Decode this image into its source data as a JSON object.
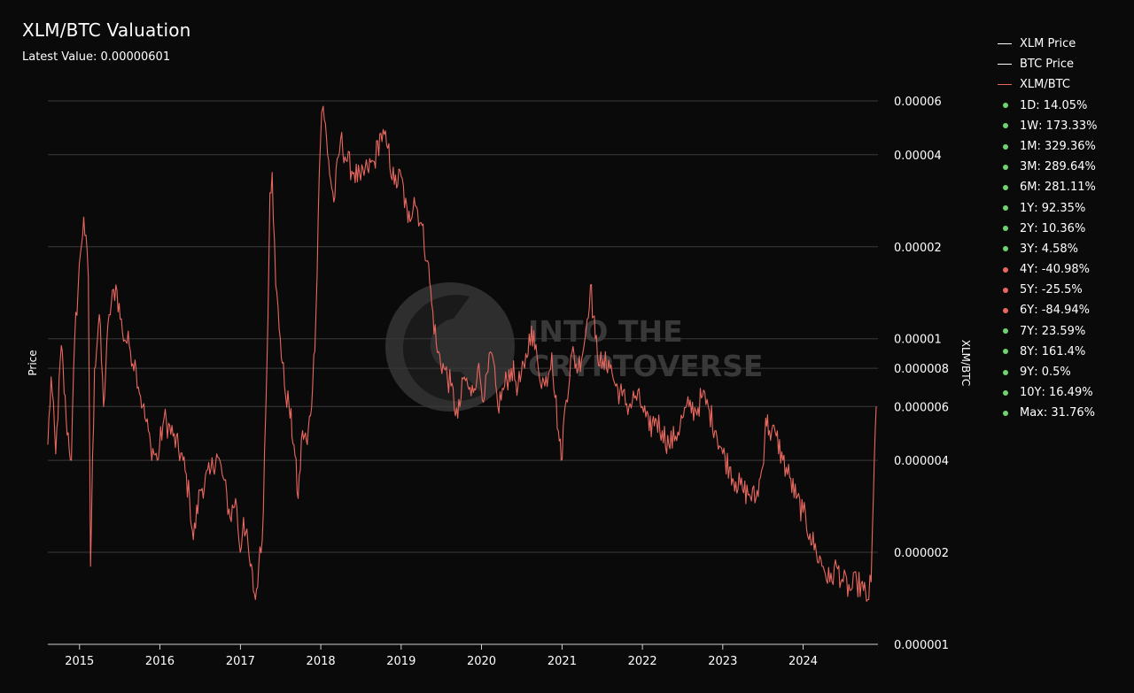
{
  "header": {
    "title": "XLM/BTC Valuation",
    "latest_label": "Latest Value:",
    "latest_value": "0.00000601"
  },
  "legend": {
    "series": [
      {
        "label": "XLM Price",
        "color": "#ffffff"
      },
      {
        "label": "BTC Price",
        "color": "#ffffff"
      },
      {
        "label": "XLM/BTC",
        "color": "#e8685f"
      }
    ],
    "performance": [
      {
        "period": "1D",
        "value": "14.05%",
        "positive": true
      },
      {
        "period": "1W",
        "value": "173.33%",
        "positive": true
      },
      {
        "period": "1M",
        "value": "329.36%",
        "positive": true
      },
      {
        "period": "3M",
        "value": "289.64%",
        "positive": true
      },
      {
        "period": "6M",
        "value": "281.11%",
        "positive": true
      },
      {
        "period": "1Y",
        "value": "92.35%",
        "positive": true
      },
      {
        "period": "2Y",
        "value": "10.36%",
        "positive": true
      },
      {
        "period": "3Y",
        "value": "4.58%",
        "positive": true
      },
      {
        "period": "4Y",
        "value": "-40.98%",
        "positive": false
      },
      {
        "period": "5Y",
        "value": "-25.5%",
        "positive": false
      },
      {
        "period": "6Y",
        "value": "-84.94%",
        "positive": false
      },
      {
        "period": "7Y",
        "value": "23.59%",
        "positive": true
      },
      {
        "period": "8Y",
        "value": "161.4%",
        "positive": true
      },
      {
        "period": "9Y",
        "value": "0.5%",
        "positive": true
      },
      {
        "period": "10Y",
        "value": "16.49%",
        "positive": true
      },
      {
        "period": "Max",
        "value": "31.76%",
        "positive": true
      }
    ],
    "positive_color": "#6fd36f",
    "negative_color": "#e8685f"
  },
  "watermark": {
    "line1": "INTO THE",
    "line2": "CRYPTOVERSE"
  },
  "chart_data": {
    "type": "line",
    "title": "XLM/BTC Valuation",
    "ylabel_left": "Price",
    "ylabel_right": "XLM/BTC",
    "y_scale": "log",
    "ylim": [
      1e-06,
      6e-05
    ],
    "xlim": [
      "2014-08-10",
      "2024-11-28"
    ],
    "x_ticks": [
      "2015",
      "2016",
      "2017",
      "2018",
      "2019",
      "2020",
      "2021",
      "2022",
      "2023",
      "2024"
    ],
    "y_ticks": [
      {
        "value": 1e-06,
        "label": "0.000001"
      },
      {
        "value": 2e-06,
        "label": "0.000002"
      },
      {
        "value": 4e-06,
        "label": "0.000004"
      },
      {
        "value": 6e-06,
        "label": "0.000006"
      },
      {
        "value": 8e-06,
        "label": "0.000008"
      },
      {
        "value": 1e-05,
        "label": "0.00001"
      },
      {
        "value": 2e-05,
        "label": "0.00002"
      },
      {
        "value": 4e-05,
        "label": "0.00004"
      },
      {
        "value": 6e-05,
        "label": "0.00006"
      }
    ],
    "grid": true,
    "legend_position": "right",
    "series": [
      {
        "name": "XLM/BTC",
        "color": "#e8685f",
        "points": [
          [
            "2014-08-10",
            4.5e-06
          ],
          [
            "2014-08-25",
            7.5e-06
          ],
          [
            "2014-09-15",
            4.2e-06
          ],
          [
            "2014-10-10",
            9.5e-06
          ],
          [
            "2014-11-01",
            5.5e-06
          ],
          [
            "2014-11-25",
            4e-06
          ],
          [
            "2014-12-10",
            1e-05
          ],
          [
            "2015-01-05",
            1.9e-05
          ],
          [
            "2015-01-20",
            2.5e-05
          ],
          [
            "2015-02-10",
            1.6e-05
          ],
          [
            "2015-02-20",
            1.8e-06
          ],
          [
            "2015-03-10",
            8e-06
          ],
          [
            "2015-04-01",
            1.2e-05
          ],
          [
            "2015-04-20",
            6e-06
          ],
          [
            "2015-05-15",
            1.2e-05
          ],
          [
            "2015-06-15",
            1.5e-05
          ],
          [
            "2015-07-15",
            1.05e-05
          ],
          [
            "2015-08-15",
            9.5e-06
          ],
          [
            "2015-09-15",
            8e-06
          ],
          [
            "2015-10-15",
            6e-06
          ],
          [
            "2015-11-20",
            4.5e-06
          ],
          [
            "2015-12-20",
            4e-06
          ],
          [
            "2016-01-20",
            5.5e-06
          ],
          [
            "2016-03-01",
            4.8e-06
          ],
          [
            "2016-04-15",
            4e-06
          ],
          [
            "2016-05-15",
            3e-06
          ],
          [
            "2016-06-01",
            2.2e-06
          ],
          [
            "2016-07-01",
            3.2e-06
          ],
          [
            "2016-08-15",
            3.6e-06
          ],
          [
            "2016-09-15",
            4.2e-06
          ],
          [
            "2016-10-15",
            3.5e-06
          ],
          [
            "2016-11-15",
            2.6e-06
          ],
          [
            "2016-12-10",
            3e-06
          ],
          [
            "2016-12-31",
            2e-06
          ],
          [
            "2017-01-15",
            2.6e-06
          ],
          [
            "2017-02-15",
            1.8e-06
          ],
          [
            "2017-03-10",
            1.4e-06
          ],
          [
            "2017-03-25",
            1.8e-06
          ],
          [
            "2017-04-10",
            2.2e-06
          ],
          [
            "2017-05-01",
            8e-06
          ],
          [
            "2017-05-15",
            3e-05
          ],
          [
            "2017-05-25",
            3.5e-05
          ],
          [
            "2017-06-10",
            1.5e-05
          ],
          [
            "2017-07-01",
            1e-05
          ],
          [
            "2017-07-20",
            7e-06
          ],
          [
            "2017-08-10",
            6e-06
          ],
          [
            "2017-09-01",
            4.5e-06
          ],
          [
            "2017-09-20",
            3e-06
          ],
          [
            "2017-10-10",
            5e-06
          ],
          [
            "2017-11-01",
            4.5e-06
          ],
          [
            "2017-11-25",
            7e-06
          ],
          [
            "2017-12-10",
            1.2e-05
          ],
          [
            "2017-12-25",
            3.5e-05
          ],
          [
            "2018-01-05",
            5.5e-05
          ],
          [
            "2018-01-12",
            5.9e-05
          ],
          [
            "2018-02-01",
            4e-05
          ],
          [
            "2018-03-01",
            2.8e-05
          ],
          [
            "2018-04-01",
            4.5e-05
          ],
          [
            "2018-05-01",
            3.8e-05
          ],
          [
            "2018-06-01",
            3.5e-05
          ],
          [
            "2018-07-01",
            3.3e-05
          ],
          [
            "2018-08-01",
            3.6e-05
          ],
          [
            "2018-09-01",
            3.8e-05
          ],
          [
            "2018-10-01",
            4.7e-05
          ],
          [
            "2018-11-01",
            4.2e-05
          ],
          [
            "2018-12-01",
            3.2e-05
          ],
          [
            "2019-01-01",
            3.4e-05
          ],
          [
            "2019-02-01",
            2.4e-05
          ],
          [
            "2019-03-01",
            2.9e-05
          ],
          [
            "2019-04-01",
            2.4e-05
          ],
          [
            "2019-05-01",
            1.8e-05
          ],
          [
            "2019-05-20",
            1.3e-05
          ],
          [
            "2019-06-15",
            9e-06
          ],
          [
            "2019-07-15",
            8e-06
          ],
          [
            "2019-08-15",
            7e-06
          ],
          [
            "2019-09-15",
            5.5e-06
          ],
          [
            "2019-10-15",
            7.5e-06
          ],
          [
            "2019-11-15",
            6.5e-06
          ],
          [
            "2019-12-15",
            8e-06
          ],
          [
            "2020-01-15",
            6.5e-06
          ],
          [
            "2020-02-15",
            9e-06
          ],
          [
            "2020-03-15",
            6e-06
          ],
          [
            "2020-04-15",
            7e-06
          ],
          [
            "2020-05-15",
            8e-06
          ],
          [
            "2020-06-15",
            7e-06
          ],
          [
            "2020-07-15",
            8e-06
          ],
          [
            "2020-08-15",
            1.1e-05
          ],
          [
            "2020-09-15",
            8e-06
          ],
          [
            "2020-10-15",
            7e-06
          ],
          [
            "2020-11-15",
            9e-06
          ],
          [
            "2020-12-15",
            5e-06
          ],
          [
            "2020-12-28",
            4e-06
          ],
          [
            "2021-01-15",
            6e-06
          ],
          [
            "2021-02-15",
            9e-06
          ],
          [
            "2021-03-15",
            8e-06
          ],
          [
            "2021-04-15",
            1e-05
          ],
          [
            "2021-05-10",
            1.5e-05
          ],
          [
            "2021-06-01",
            1e-05
          ],
          [
            "2021-07-01",
            8e-06
          ],
          [
            "2021-08-01",
            8.5e-06
          ],
          [
            "2021-09-01",
            7e-06
          ],
          [
            "2021-10-01",
            6.5e-06
          ],
          [
            "2021-11-01",
            6e-06
          ],
          [
            "2021-12-01",
            6.5e-06
          ],
          [
            "2022-01-01",
            6e-06
          ],
          [
            "2022-02-01",
            5e-06
          ],
          [
            "2022-03-01",
            5.5e-06
          ],
          [
            "2022-04-01",
            5e-06
          ],
          [
            "2022-05-01",
            4.5e-06
          ],
          [
            "2022-06-01",
            4.8e-06
          ],
          [
            "2022-07-01",
            5.5e-06
          ],
          [
            "2022-08-01",
            6e-06
          ],
          [
            "2022-09-01",
            5.8e-06
          ],
          [
            "2022-10-01",
            6.5e-06
          ],
          [
            "2022-11-01",
            5.8e-06
          ],
          [
            "2022-12-01",
            5e-06
          ],
          [
            "2023-01-01",
            4.2e-06
          ],
          [
            "2023-02-01",
            3.8e-06
          ],
          [
            "2023-03-01",
            3.4e-06
          ],
          [
            "2023-04-01",
            3.2e-06
          ],
          [
            "2023-05-01",
            3.1e-06
          ],
          [
            "2023-06-01",
            3e-06
          ],
          [
            "2023-07-01",
            3.8e-06
          ],
          [
            "2023-07-15",
            5.5e-06
          ],
          [
            "2023-08-01",
            5e-06
          ],
          [
            "2023-09-01",
            4.8e-06
          ],
          [
            "2023-10-01",
            4e-06
          ],
          [
            "2023-11-01",
            3.5e-06
          ],
          [
            "2023-12-01",
            3e-06
          ],
          [
            "2024-01-01",
            2.7e-06
          ],
          [
            "2024-02-01",
            2.3e-06
          ],
          [
            "2024-03-01",
            2e-06
          ],
          [
            "2024-04-01",
            1.8e-06
          ],
          [
            "2024-05-01",
            1.6e-06
          ],
          [
            "2024-06-01",
            1.8e-06
          ],
          [
            "2024-07-01",
            1.6e-06
          ],
          [
            "2024-08-01",
            1.5e-06
          ],
          [
            "2024-09-01",
            1.6e-06
          ],
          [
            "2024-10-01",
            1.5e-06
          ],
          [
            "2024-10-20",
            1.4e-06
          ],
          [
            "2024-11-05",
            1.6e-06
          ],
          [
            "2024-11-15",
            3e-06
          ],
          [
            "2024-11-28",
            6e-06
          ]
        ]
      }
    ]
  }
}
